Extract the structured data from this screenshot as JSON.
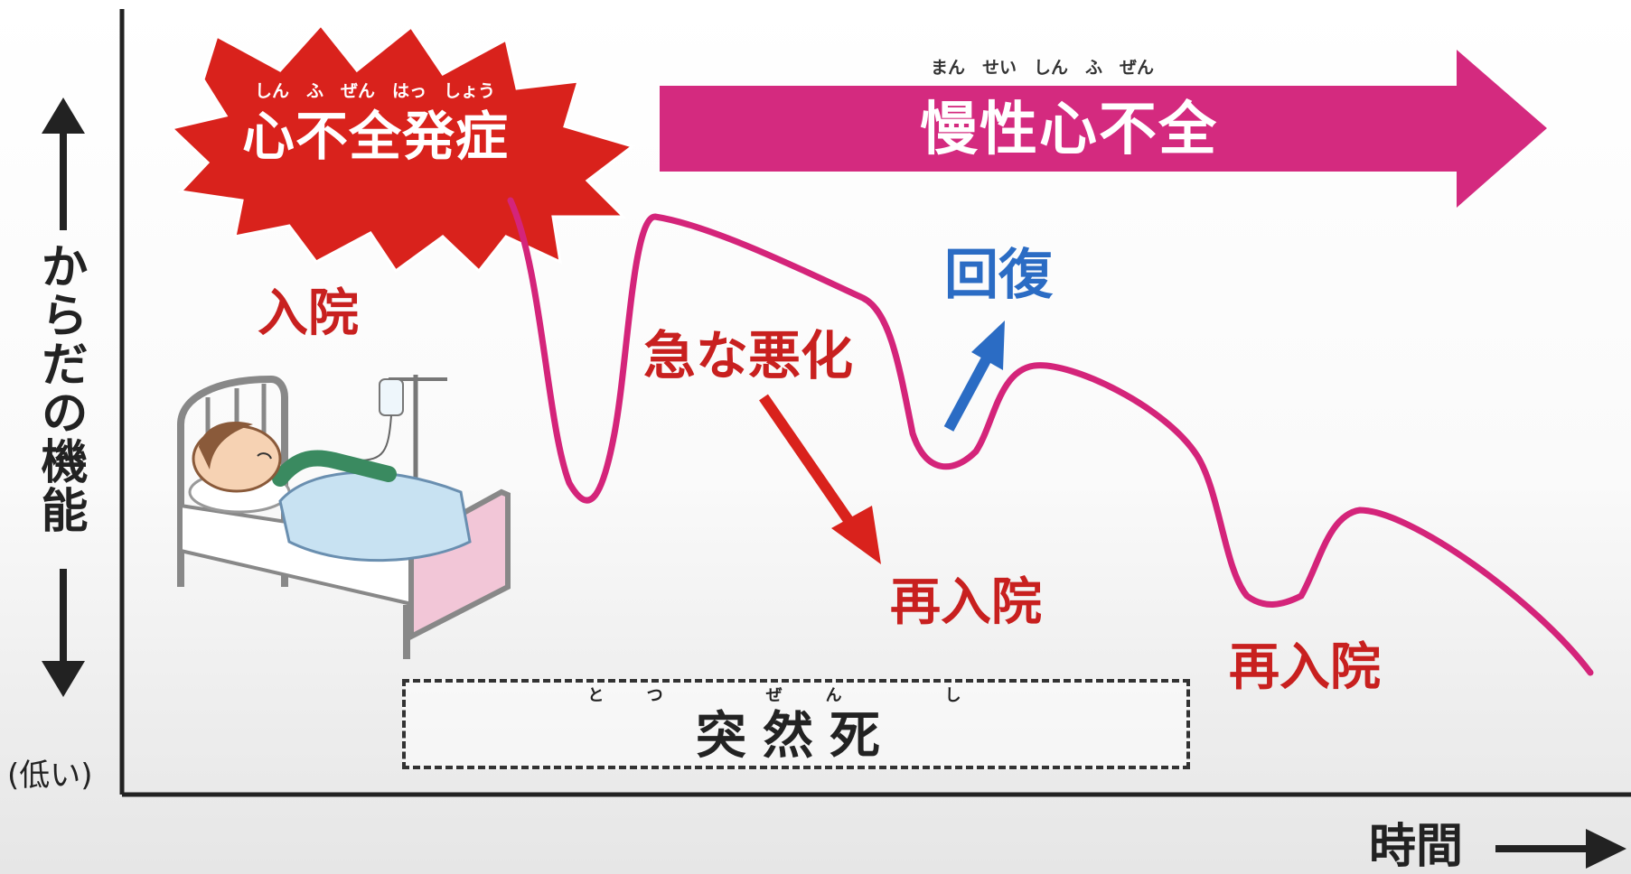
{
  "diagram": {
    "y_axis_label": "からだの機能",
    "y_axis_low": "(低い)",
    "x_axis_label": "時間",
    "onset": {
      "label": "心不全発症",
      "ruby": "しん　ふ　ぜん　はっ　しょう"
    },
    "chronic": {
      "label": "慢性心不全",
      "ruby": "まん　せい　しん　ふ　ぜん"
    },
    "admission": "入院",
    "sudden_worsening": "急な悪化",
    "recovery": "回復",
    "readmission_1": "再入院",
    "readmission_2": "再入院",
    "sudden_death": {
      "label": "突然死",
      "ruby": "とつ　ぜん　し"
    }
  },
  "colors": {
    "curve": "#d4247a",
    "onset_burst": "#d9221c",
    "chronic_arrow": "#d42a7f",
    "label_red": "#c8201f",
    "recovery_blue": "#2b6cc4",
    "axis": "#222222"
  }
}
